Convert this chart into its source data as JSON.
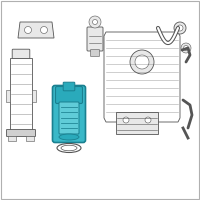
{
  "bg_color": "#ffffff",
  "border_color": "#b0b0b0",
  "highlight_color": "#3ab8c8",
  "highlight_color2": "#60ccd8",
  "highlight_dark": "#1a8090",
  "line_color": "#555555",
  "part_fill": "#e8e8e8",
  "part_fill2": "#d0d0d0",
  "white": "#ffffff"
}
